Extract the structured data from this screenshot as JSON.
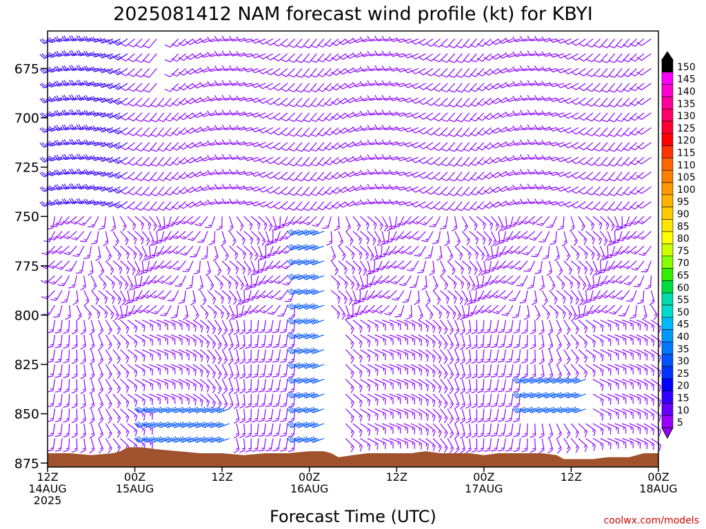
{
  "chart_data": {
    "type": "wind-barb-time-height",
    "title": "2025081412 NAM forecast wind profile (kt) for KBYI",
    "xlabel": "Forecast Time (UTC)",
    "ylabel": "",
    "yaxis_ticks": [
      "675",
      "700",
      "725",
      "750",
      "775",
      "800",
      "825",
      "850",
      "875"
    ],
    "ylim": [
      656,
      877
    ],
    "yaxis_inverted": true,
    "xaxis_ticks": [
      {
        "hour": 0,
        "line1": "12Z",
        "line2": "14AUG",
        "line3": "2025"
      },
      {
        "hour": 12,
        "line1": "00Z",
        "line2": "15AUG",
        "line3": ""
      },
      {
        "hour": 24,
        "line1": "12Z",
        "line2": "",
        "line3": ""
      },
      {
        "hour": 36,
        "line1": "00Z",
        "line2": "16AUG",
        "line3": ""
      },
      {
        "hour": 48,
        "line1": "12Z",
        "line2": "",
        "line3": ""
      },
      {
        "hour": 60,
        "line1": "00Z",
        "line2": "17AUG",
        "line3": ""
      },
      {
        "hour": 72,
        "line1": "12Z",
        "line2": "",
        "line3": ""
      },
      {
        "hour": 84,
        "line1": "00Z",
        "line2": "18AUG",
        "line3": ""
      }
    ],
    "xlim_hours": [
      0,
      84
    ],
    "colorbar": {
      "levels": [
        "150",
        "145",
        "140",
        "135",
        "130",
        "125",
        "120",
        "115",
        "110",
        "105",
        "100",
        "95",
        "90",
        "85",
        "80",
        "75",
        "70",
        "65",
        "60",
        "55",
        "50",
        "45",
        "40",
        "35",
        "30",
        "25",
        "20",
        "15",
        "10",
        "5"
      ],
      "colors": [
        "#000000",
        "#ff00ff",
        "#ff00cc",
        "#ff0099",
        "#ff0066",
        "#ff0033",
        "#ff0000",
        "#ff3300",
        "#ff6600",
        "#ff8000",
        "#ff9900",
        "#ffb300",
        "#ffcc00",
        "#ffe600",
        "#ffff00",
        "#ccff00",
        "#88ff00",
        "#33ee00",
        "#00dd44",
        "#00ddaa",
        "#00ddcc",
        "#00bbff",
        "#0099ff",
        "#0077ff",
        "#0055ff",
        "#0033ff",
        "#0000ff",
        "#3300ff",
        "#6600ff",
        "#9900ff"
      ]
    },
    "terrain_color": "#a0522d",
    "barb_color": "#8800ff",
    "grid": false,
    "credit": "coolwx.com/models"
  }
}
